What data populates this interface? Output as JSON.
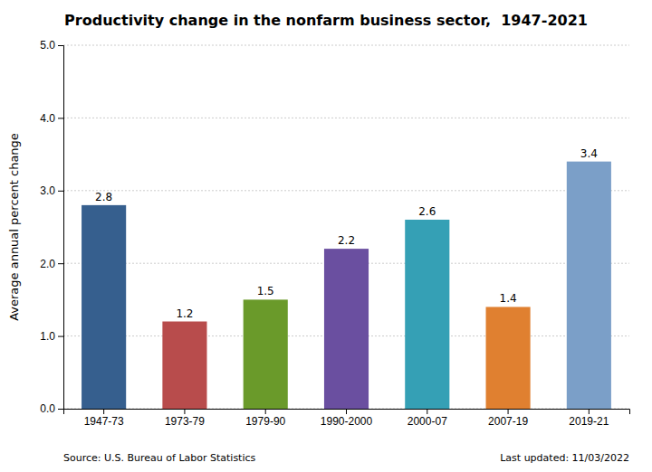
{
  "chart_data": {
    "type": "bar",
    "title": "Productivity change in the nonfarm business sector,  1947-2021",
    "categories": [
      "1947-73",
      "1973-79",
      "1979-90",
      "1990-2000",
      "2000-07",
      "2007-19",
      "2019-21"
    ],
    "values": [
      2.8,
      1.2,
      1.5,
      2.2,
      2.6,
      1.4,
      3.4
    ],
    "colors": [
      "#365f8e",
      "#b84c4c",
      "#6a9a2a",
      "#6a4fa0",
      "#35a0b5",
      "#e08030",
      "#7b9fc8"
    ],
    "ylabel": "Average annual percent change",
    "ylim": [
      0,
      5.0
    ],
    "yticks": [
      {
        "value": 0.0,
        "label": "0.0"
      },
      {
        "value": 1.0,
        "label": "1.0"
      },
      {
        "value": 2.0,
        "label": "2.0"
      },
      {
        "value": 3.0,
        "label": "3.0"
      },
      {
        "value": 4.0,
        "label": "4.0"
      },
      {
        "value": 5.0,
        "label": "5.0"
      }
    ],
    "grid": true,
    "data_labels": true,
    "annotations": [
      "Source: U.S. Bureau of Labor Statistics",
      "Last updated: 11/03/2022"
    ]
  }
}
